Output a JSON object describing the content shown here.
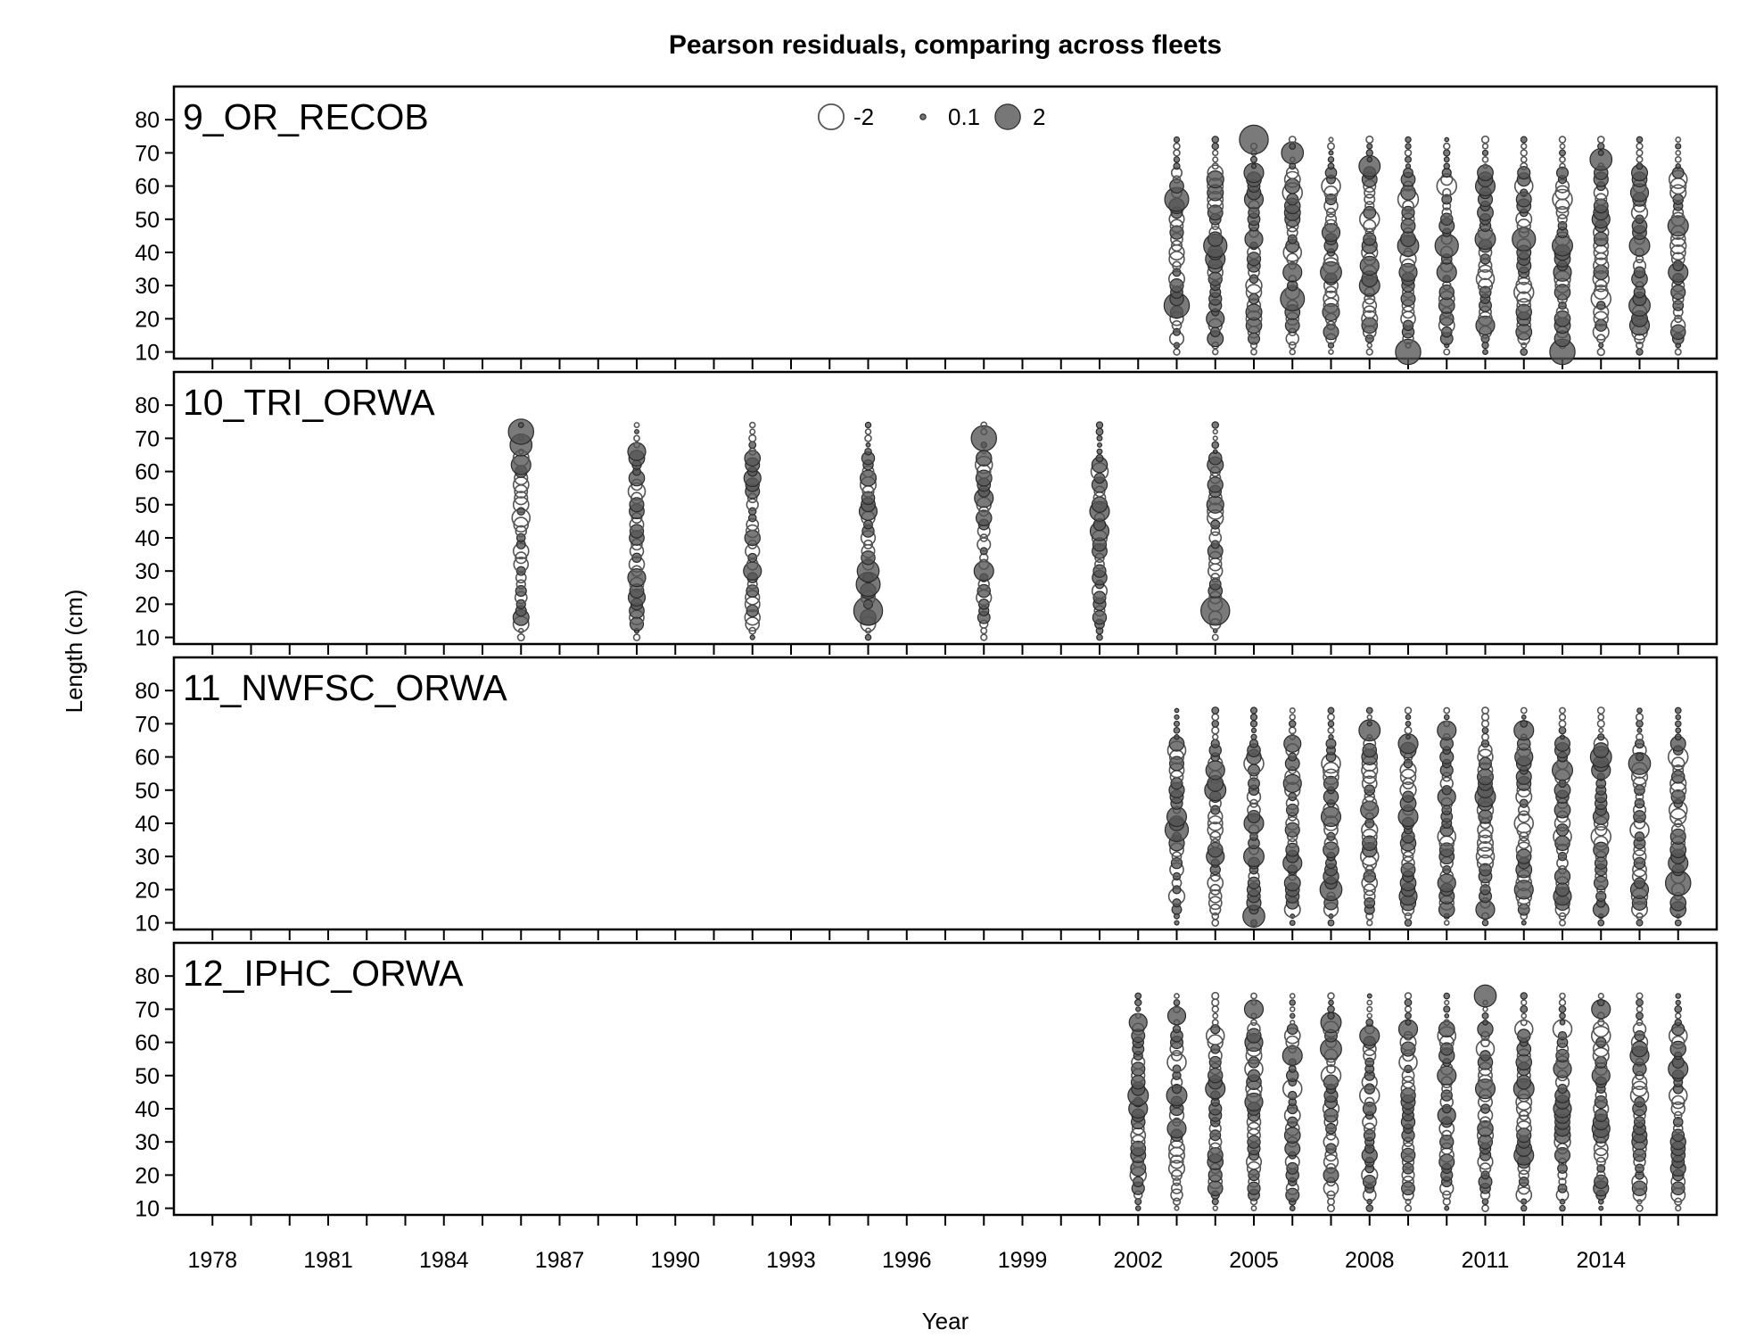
{
  "chart_data": {
    "type": "scatter",
    "subtype": "bubble",
    "title": "Pearson residuals,  comparing across fleets",
    "xlabel": "Year",
    "ylabel": "Length (cm)",
    "xlim": [
      1977,
      2017
    ],
    "ylim": [
      8,
      90
    ],
    "x_ticks": [
      1978,
      1979,
      1980,
      1981,
      1982,
      1983,
      1984,
      1985,
      1986,
      1987,
      1988,
      1989,
      1990,
      1991,
      1992,
      1993,
      1994,
      1995,
      1996,
      1997,
      1998,
      1999,
      2000,
      2001,
      2002,
      2003,
      2004,
      2005,
      2006,
      2007,
      2008,
      2009,
      2010,
      2011,
      2012,
      2013,
      2014,
      2015,
      2016
    ],
    "x_tick_labels": [
      "1978",
      "1981",
      "1984",
      "1987",
      "1990",
      "1993",
      "1996",
      "1999",
      "2002",
      "2005",
      "2008",
      "2011",
      "2014"
    ],
    "y_ticks": [
      10,
      20,
      30,
      40,
      50,
      60,
      70,
      80
    ],
    "y_tick_labels": [
      "10",
      "20",
      "30",
      "40",
      "50",
      "60",
      "70",
      "80"
    ],
    "length_bins": {
      "start": 10,
      "end": 74,
      "step": 2
    },
    "grid": false,
    "legend": {
      "placement": "top-center",
      "entries": [
        {
          "label": "-2",
          "value": -2
        },
        {
          "label": "0.1",
          "value": 0.1
        },
        {
          "label": "2",
          "value": 2
        }
      ]
    },
    "colors": {
      "positive_fill": "#555555",
      "negative_stroke": "#555555",
      "frame": "#000000"
    },
    "panels": [
      {
        "name": "9_OR_RECOB",
        "years": [
          2003,
          2004,
          2005,
          2006,
          2007,
          2008,
          2009,
          2010,
          2011,
          2012,
          2013,
          2014,
          2015,
          2016
        ],
        "highlights": [
          {
            "year": 2003,
            "length": 56,
            "value": 1.8
          },
          {
            "year": 2003,
            "length": 24,
            "value": 2.0
          },
          {
            "year": 2004,
            "length": 42,
            "value": 1.7
          },
          {
            "year": 2004,
            "length": 38,
            "value": 1.2
          },
          {
            "year": 2004,
            "length": 62,
            "value": 0.9
          },
          {
            "year": 2004,
            "length": 20,
            "value": 1.0
          },
          {
            "year": 2005,
            "length": 74,
            "value": 2.6
          },
          {
            "year": 2005,
            "length": 64,
            "value": 1.2
          },
          {
            "year": 2005,
            "length": 56,
            "value": 1.1
          },
          {
            "year": 2005,
            "length": 44,
            "value": 1.0
          },
          {
            "year": 2005,
            "length": 22,
            "value": 0.8
          },
          {
            "year": 2006,
            "length": 70,
            "value": 1.5
          },
          {
            "year": 2006,
            "length": 26,
            "value": 1.8
          },
          {
            "year": 2006,
            "length": 34,
            "value": 1.1
          },
          {
            "year": 2006,
            "length": 58,
            "value": -1.2
          },
          {
            "year": 2006,
            "length": 40,
            "value": -1.0
          },
          {
            "year": 2007,
            "length": 34,
            "value": 1.4
          },
          {
            "year": 2007,
            "length": 46,
            "value": 1.0
          },
          {
            "year": 2007,
            "length": 60,
            "value": -1.1
          },
          {
            "year": 2007,
            "length": 22,
            "value": 0.9
          },
          {
            "year": 2008,
            "length": 66,
            "value": 1.4
          },
          {
            "year": 2008,
            "length": 30,
            "value": 1.3
          },
          {
            "year": 2008,
            "length": 36,
            "value": 1.1
          },
          {
            "year": 2008,
            "length": 50,
            "value": -1.2
          },
          {
            "year": 2009,
            "length": 10,
            "value": 2.0
          },
          {
            "year": 2009,
            "length": 42,
            "value": 1.4
          },
          {
            "year": 2009,
            "length": 34,
            "value": 1.0
          },
          {
            "year": 2009,
            "length": 56,
            "value": -1.3
          },
          {
            "year": 2010,
            "length": 42,
            "value": 1.7
          },
          {
            "year": 2010,
            "length": 34,
            "value": 1.2
          },
          {
            "year": 2010,
            "length": 60,
            "value": -1.2
          },
          {
            "year": 2011,
            "length": 60,
            "value": 1.2
          },
          {
            "year": 2011,
            "length": 44,
            "value": 1.3
          },
          {
            "year": 2011,
            "length": 18,
            "value": 1.1
          },
          {
            "year": 2011,
            "length": 32,
            "value": -1.0
          },
          {
            "year": 2012,
            "length": 44,
            "value": 1.7
          },
          {
            "year": 2012,
            "length": 28,
            "value": -1.2
          },
          {
            "year": 2012,
            "length": 60,
            "value": -1.0
          },
          {
            "year": 2013,
            "length": 10,
            "value": 2.0
          },
          {
            "year": 2013,
            "length": 42,
            "value": 1.3
          },
          {
            "year": 2013,
            "length": 34,
            "value": 1.0
          },
          {
            "year": 2013,
            "length": 56,
            "value": -1.2
          },
          {
            "year": 2014,
            "length": 68,
            "value": 1.5
          },
          {
            "year": 2014,
            "length": 50,
            "value": 1.0
          },
          {
            "year": 2014,
            "length": 26,
            "value": -1.2
          },
          {
            "year": 2015,
            "length": 42,
            "value": 1.3
          },
          {
            "year": 2015,
            "length": 24,
            "value": 1.4
          },
          {
            "year": 2015,
            "length": 18,
            "value": 1.2
          },
          {
            "year": 2015,
            "length": 58,
            "value": 1.0
          },
          {
            "year": 2016,
            "length": 48,
            "value": 1.3
          },
          {
            "year": 2016,
            "length": 34,
            "value": 1.2
          },
          {
            "year": 2016,
            "length": 62,
            "value": -1.0
          }
        ]
      },
      {
        "name": "10_TRI_ORWA",
        "years": [
          1986,
          1989,
          1992,
          1995,
          1998,
          2001,
          2004
        ],
        "highlights": [
          {
            "year": 1986,
            "length": 72,
            "value": 2.0
          },
          {
            "year": 1986,
            "length": 68,
            "value": 1.5
          },
          {
            "year": 1986,
            "length": 62,
            "value": 1.2
          },
          {
            "year": 1986,
            "length": 46,
            "value": -1.0
          },
          {
            "year": 1989,
            "length": 66,
            "value": 1.0
          },
          {
            "year": 1989,
            "length": 28,
            "value": 1.0
          },
          {
            "year": 1989,
            "length": 22,
            "value": 0.9
          },
          {
            "year": 1989,
            "length": 54,
            "value": -0.9
          },
          {
            "year": 1992,
            "length": 58,
            "value": 0.9
          },
          {
            "year": 1992,
            "length": 30,
            "value": 1.0
          },
          {
            "year": 1995,
            "length": 18,
            "value": 2.6
          },
          {
            "year": 1995,
            "length": 26,
            "value": 1.8
          },
          {
            "year": 1995,
            "length": 30,
            "value": 1.5
          },
          {
            "year": 1995,
            "length": 48,
            "value": 1.0
          },
          {
            "year": 1995,
            "length": 58,
            "value": 0.8
          },
          {
            "year": 1998,
            "length": 70,
            "value": 2.0
          },
          {
            "year": 1998,
            "length": 52,
            "value": 1.1
          },
          {
            "year": 1998,
            "length": 30,
            "value": 1.2
          },
          {
            "year": 1998,
            "length": 62,
            "value": -0.9
          },
          {
            "year": 2001,
            "length": 48,
            "value": 1.2
          },
          {
            "year": 2001,
            "length": 42,
            "value": 1.1
          },
          {
            "year": 2001,
            "length": 60,
            "value": -0.9
          },
          {
            "year": 2004,
            "length": 18,
            "value": 2.6
          },
          {
            "year": 2004,
            "length": 50,
            "value": 0.9
          },
          {
            "year": 2004,
            "length": 62,
            "value": 0.8
          }
        ]
      },
      {
        "name": "11_NWFSC_ORWA",
        "years": [
          2003,
          2004,
          2005,
          2006,
          2007,
          2008,
          2009,
          2010,
          2011,
          2012,
          2013,
          2014,
          2015,
          2016
        ],
        "highlights": [
          {
            "year": 2003,
            "length": 38,
            "value": 1.7
          },
          {
            "year": 2003,
            "length": 42,
            "value": 1.2
          },
          {
            "year": 2003,
            "length": 62,
            "value": -1.0
          },
          {
            "year": 2004,
            "length": 50,
            "value": 1.4
          },
          {
            "year": 2004,
            "length": 56,
            "value": 1.1
          },
          {
            "year": 2004,
            "length": 30,
            "value": 1.0
          },
          {
            "year": 2005,
            "length": 12,
            "value": 1.5
          },
          {
            "year": 2005,
            "length": 30,
            "value": 1.3
          },
          {
            "year": 2005,
            "length": 40,
            "value": 1.2
          },
          {
            "year": 2005,
            "length": 58,
            "value": -1.2
          },
          {
            "year": 2006,
            "length": 28,
            "value": 1.1
          },
          {
            "year": 2006,
            "length": 52,
            "value": 1.0
          },
          {
            "year": 2006,
            "length": 64,
            "value": 0.9
          },
          {
            "year": 2007,
            "length": 20,
            "value": 1.5
          },
          {
            "year": 2007,
            "length": 42,
            "value": 1.2
          },
          {
            "year": 2007,
            "length": 58,
            "value": -1.1
          },
          {
            "year": 2008,
            "length": 68,
            "value": 1.4
          },
          {
            "year": 2008,
            "length": 44,
            "value": 1.0
          },
          {
            "year": 2008,
            "length": 30,
            "value": -1.0
          },
          {
            "year": 2009,
            "length": 64,
            "value": 1.2
          },
          {
            "year": 2009,
            "length": 42,
            "value": 1.2
          },
          {
            "year": 2009,
            "length": 18,
            "value": 1.0
          },
          {
            "year": 2010,
            "length": 68,
            "value": 1.1
          },
          {
            "year": 2010,
            "length": 48,
            "value": 1.0
          },
          {
            "year": 2010,
            "length": 22,
            "value": 1.0
          },
          {
            "year": 2010,
            "length": 36,
            "value": -1.0
          },
          {
            "year": 2011,
            "length": 48,
            "value": 1.3
          },
          {
            "year": 2011,
            "length": 14,
            "value": 1.1
          },
          {
            "year": 2011,
            "length": 30,
            "value": -1.0
          },
          {
            "year": 2012,
            "length": 68,
            "value": 1.2
          },
          {
            "year": 2012,
            "length": 60,
            "value": 1.0
          },
          {
            "year": 2012,
            "length": 20,
            "value": 1.1
          },
          {
            "year": 2012,
            "length": 40,
            "value": -1.1
          },
          {
            "year": 2013,
            "length": 56,
            "value": 1.3
          },
          {
            "year": 2013,
            "length": 18,
            "value": 1.0
          },
          {
            "year": 2013,
            "length": 36,
            "value": -1.0
          },
          {
            "year": 2014,
            "length": 60,
            "value": 1.4
          },
          {
            "year": 2014,
            "length": 56,
            "value": 1.1
          },
          {
            "year": 2014,
            "length": 36,
            "value": -1.2
          },
          {
            "year": 2015,
            "length": 58,
            "value": 1.5
          },
          {
            "year": 2015,
            "length": 20,
            "value": 1.0
          },
          {
            "year": 2015,
            "length": 38,
            "value": -1.1
          },
          {
            "year": 2016,
            "length": 22,
            "value": 2.0
          },
          {
            "year": 2016,
            "length": 28,
            "value": 1.2
          },
          {
            "year": 2016,
            "length": 60,
            "value": -1.2
          },
          {
            "year": 2016,
            "length": 44,
            "value": -1.0
          }
        ]
      },
      {
        "name": "12_IPHC_ORWA",
        "years": [
          2002,
          2003,
          2004,
          2005,
          2006,
          2007,
          2008,
          2009,
          2010,
          2011,
          2012,
          2013,
          2014,
          2015,
          2016
        ],
        "highlights": [
          {
            "year": 2002,
            "length": 66,
            "value": 1.0
          },
          {
            "year": 2002,
            "length": 44,
            "value": 1.3
          },
          {
            "year": 2002,
            "length": 40,
            "value": 1.1
          },
          {
            "year": 2003,
            "length": 68,
            "value": 1.0
          },
          {
            "year": 2003,
            "length": 44,
            "value": 1.3
          },
          {
            "year": 2003,
            "length": 34,
            "value": 1.1
          },
          {
            "year": 2003,
            "length": 54,
            "value": -1.1
          },
          {
            "year": 2004,
            "length": 46,
            "value": 1.2
          },
          {
            "year": 2004,
            "length": 62,
            "value": -1.0
          },
          {
            "year": 2005,
            "length": 70,
            "value": 1.1
          },
          {
            "year": 2005,
            "length": 60,
            "value": 1.0
          },
          {
            "year": 2005,
            "length": 42,
            "value": 1.0
          },
          {
            "year": 2005,
            "length": 52,
            "value": -1.0
          },
          {
            "year": 2006,
            "length": 56,
            "value": 1.2
          },
          {
            "year": 2006,
            "length": 46,
            "value": -1.1
          },
          {
            "year": 2007,
            "length": 66,
            "value": 1.3
          },
          {
            "year": 2007,
            "length": 58,
            "value": 1.4
          },
          {
            "year": 2007,
            "length": 50,
            "value": -1.2
          },
          {
            "year": 2008,
            "length": 62,
            "value": 1.2
          },
          {
            "year": 2008,
            "length": 44,
            "value": -1.2
          },
          {
            "year": 2009,
            "length": 64,
            "value": 1.1
          },
          {
            "year": 2009,
            "length": 54,
            "value": -1.0
          },
          {
            "year": 2010,
            "length": 50,
            "value": 1.1
          },
          {
            "year": 2010,
            "length": 38,
            "value": 1.0
          },
          {
            "year": 2010,
            "length": 62,
            "value": -1.0
          },
          {
            "year": 2011,
            "length": 74,
            "value": 1.5
          },
          {
            "year": 2011,
            "length": 46,
            "value": 1.2
          },
          {
            "year": 2011,
            "length": 58,
            "value": -1.0
          },
          {
            "year": 2012,
            "length": 26,
            "value": 1.2
          },
          {
            "year": 2012,
            "length": 46,
            "value": 1.3
          },
          {
            "year": 2012,
            "length": 64,
            "value": -1.0
          },
          {
            "year": 2013,
            "length": 52,
            "value": 1.0
          },
          {
            "year": 2013,
            "length": 40,
            "value": 1.0
          },
          {
            "year": 2013,
            "length": 64,
            "value": -1.1
          },
          {
            "year": 2014,
            "length": 70,
            "value": 1.1
          },
          {
            "year": 2014,
            "length": 50,
            "value": 1.0
          },
          {
            "year": 2014,
            "length": 34,
            "value": 1.0
          },
          {
            "year": 2014,
            "length": 62,
            "value": -1.1
          },
          {
            "year": 2015,
            "length": 56,
            "value": 1.1
          },
          {
            "year": 2015,
            "length": 44,
            "value": -1.0
          },
          {
            "year": 2016,
            "length": 52,
            "value": 1.2
          },
          {
            "year": 2016,
            "length": 62,
            "value": -1.0
          },
          {
            "year": 2016,
            "length": 44,
            "value": -1.0
          }
        ]
      }
    ]
  }
}
